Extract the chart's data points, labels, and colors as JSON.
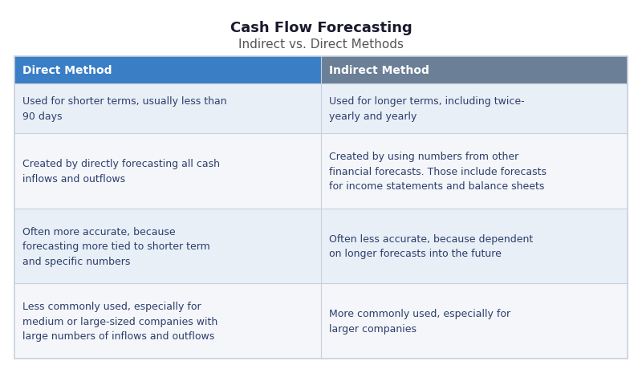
{
  "title": "Cash Flow Forecasting",
  "subtitle": "Indirect vs. Direct Methods",
  "col1_header": "Direct Method",
  "col2_header": "Indirect Method",
  "rows": [
    {
      "col1": "Used for shorter terms, usually less than\n90 days",
      "col2": "Used for longer terms, including twice-\nyearly and yearly"
    },
    {
      "col1": "Created by directly forecasting all cash\ninflows and outflows",
      "col2": "Created by using numbers from other\nfinancial forecasts. Those include forecasts\nfor income statements and balance sheets"
    },
    {
      "col1": "Often more accurate, because\nforecasting more tied to shorter term\nand specific numbers",
      "col2": "Often less accurate, because dependent\non longer forecasts into the future"
    },
    {
      "col1": "Less commonly used, especially for\nmedium or large-sized companies with\nlarge numbers of inflows and outflows",
      "col2": "More commonly used, especially for\nlarger companies"
    }
  ],
  "header_bg_col1": "#3A7EC6",
  "header_bg_col2": "#6B7F96",
  "header_text_color": "#FFFFFF",
  "row_bg_even": "#E9EFF7",
  "row_bg_odd": "#F4F6FA",
  "cell_text_color": "#2C3E6B",
  "title_color": "#1a1a2e",
  "subtitle_color": "#555555",
  "border_color": "#C8D0DC",
  "col_split": 0.5,
  "title_fontsize": 13,
  "subtitle_fontsize": 11,
  "header_fontsize": 10,
  "cell_fontsize": 9
}
